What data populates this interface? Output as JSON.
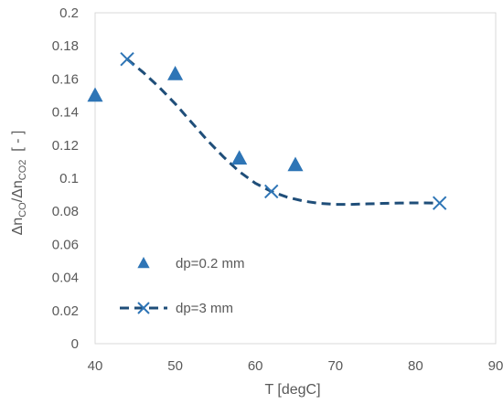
{
  "chart_data": {
    "type": "scatter",
    "xlabel": "T [degC]",
    "ylabel": {
      "prefix": "Δn",
      "sub1": "CO",
      "mid": "/Δn",
      "sub2": "CO2",
      "suffix": "  [ - ]"
    },
    "xlim": [
      40,
      90
    ],
    "ylim": [
      0,
      0.2
    ],
    "x_ticks": [
      40,
      50,
      60,
      70,
      80,
      90
    ],
    "y_ticks": [
      0,
      0.02,
      0.04,
      0.06,
      0.08,
      0.1,
      0.12,
      0.14,
      0.16,
      0.18,
      0.2
    ],
    "x_tick_labels": [
      "40",
      "50",
      "60",
      "70",
      "80",
      "90"
    ],
    "y_tick_labels": [
      "0",
      "0.02",
      "0.04",
      "0.06",
      "0.08",
      "0.1",
      "0.12",
      "0.14",
      "0.16",
      "0.18",
      "0.2"
    ],
    "grid": false,
    "legend_position": "inside-left",
    "series": [
      {
        "name": "dp=0.2 mm",
        "marker": "triangle",
        "line": false,
        "color": "#2e75b6",
        "x": [
          40,
          50,
          58,
          65
        ],
        "y": [
          0.15,
          0.163,
          0.112,
          0.108
        ]
      },
      {
        "name": "dp=3 mm",
        "marker": "x",
        "line": "dashed",
        "color": "#2e75b6",
        "line_color": "#1f4e79",
        "x": [
          44,
          62,
          83
        ],
        "y": [
          0.172,
          0.092,
          0.085
        ],
        "curve": {
          "x": [
            44,
            46,
            48,
            50,
            52,
            54,
            56,
            58,
            60,
            62,
            64,
            66,
            68,
            70,
            72,
            74,
            76,
            78,
            80,
            83
          ],
          "y": [
            0.172,
            0.164,
            0.155,
            0.145,
            0.134,
            0.123,
            0.113,
            0.104,
            0.097,
            0.092,
            0.0885,
            0.0862,
            0.0848,
            0.0842,
            0.0842,
            0.0845,
            0.0848,
            0.085,
            0.0851,
            0.085
          ]
        }
      }
    ],
    "colors": {
      "axis": "#d9d9d9",
      "text": "#595959"
    }
  }
}
